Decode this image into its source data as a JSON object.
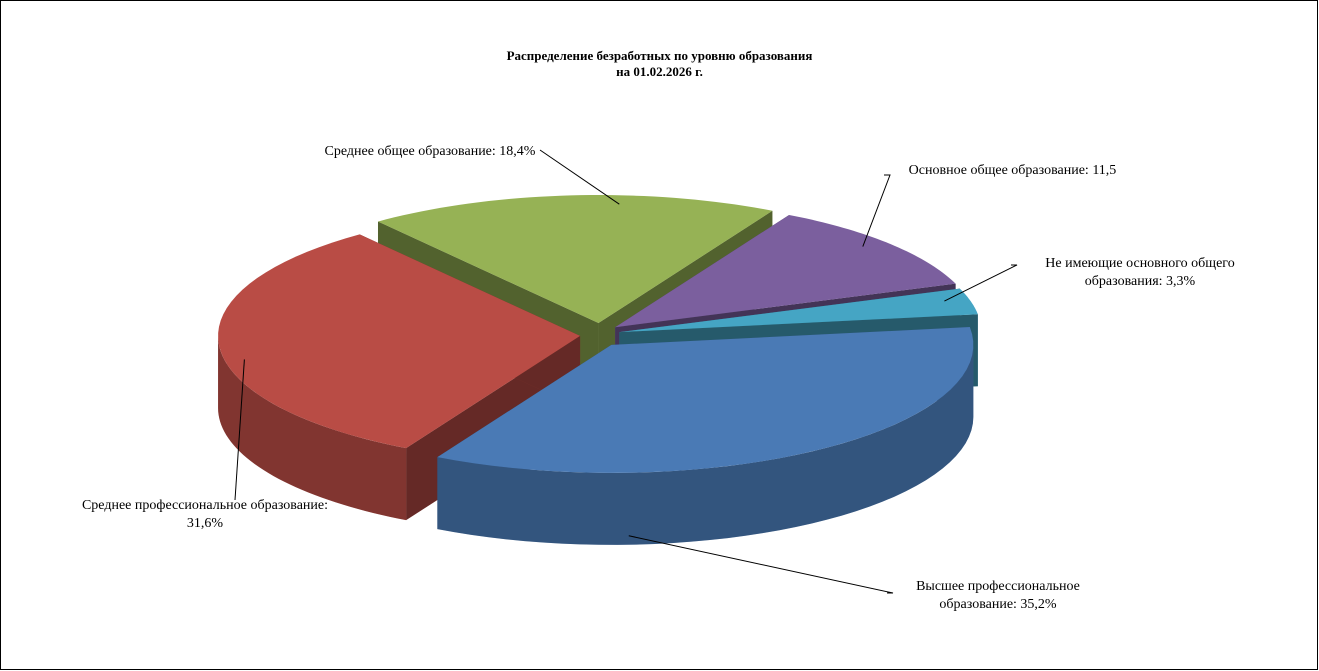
{
  "chart_data": {
    "type": "pie3d",
    "title": [
      "Распределение безработных по уровню образования",
      "на 01.02.2026 г."
    ],
    "categories": [
      "Высшее профессиональное образование:",
      "Среднее профессиональное образование:",
      "Среднее общее образование:",
      "Основное общее образование:",
      "Не имеющие основного общего образования:"
    ],
    "values": [
      35.2,
      31.6,
      18.4,
      11.5,
      3.3
    ],
    "value_labels": [
      "35,2%",
      "31,6%",
      "18,4%",
      "11,5",
      "3,3%"
    ],
    "colors": [
      "#4a7ab5",
      "#b94c45",
      "#96b255",
      "#7b5f9e",
      "#45a5c4"
    ]
  }
}
